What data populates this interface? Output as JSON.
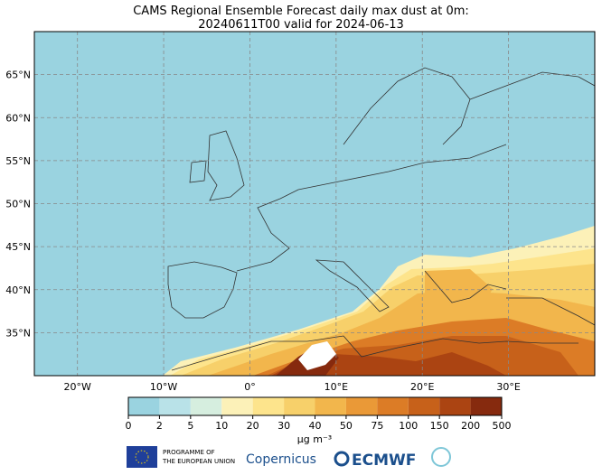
{
  "title": [
    "CAMS Regional Ensemble Forecast daily max dust at 0m:",
    "20240611T00 valid for 2024-06-13"
  ],
  "map": {
    "lon_range": [
      -25,
      40
    ],
    "lat_range": [
      30,
      70
    ],
    "background": "#9ad3e0",
    "lat_ticks": [
      {
        "value": 35,
        "label": "35°N"
      },
      {
        "value": 40,
        "label": "40°N"
      },
      {
        "value": 45,
        "label": "45°N"
      },
      {
        "value": 50,
        "label": "50°N"
      },
      {
        "value": 55,
        "label": "55°N"
      },
      {
        "value": 60,
        "label": "60°N"
      },
      {
        "value": 65,
        "label": "65°N"
      }
    ],
    "lon_ticks": [
      {
        "value": -20,
        "label": "20°W"
      },
      {
        "value": -10,
        "label": "10°W"
      },
      {
        "value": 0,
        "label": "0°"
      },
      {
        "value": 10,
        "label": "10°E"
      },
      {
        "value": 20,
        "label": "20°E"
      },
      {
        "value": 30,
        "label": "30°E"
      }
    ]
  },
  "colorbar": {
    "bounds": [
      0,
      2,
      5,
      10,
      20,
      30,
      40,
      50,
      75,
      100,
      150,
      200,
      500
    ],
    "colors": [
      "#9ad3e0",
      "#b9e2e8",
      "#d6eedf",
      "#fcf1b8",
      "#fde48c",
      "#f7d06a",
      "#f2b64c",
      "#ea9937",
      "#dc7c26",
      "#c7611a",
      "#ab4412",
      "#862a0e"
    ],
    "unit": "µg m⁻³"
  },
  "logos": {
    "eu": [
      "PROGRAMME OF",
      "THE EUROPEAN UNION"
    ],
    "copernicus": "Copernicus",
    "ecmwf": "ECMWF"
  }
}
